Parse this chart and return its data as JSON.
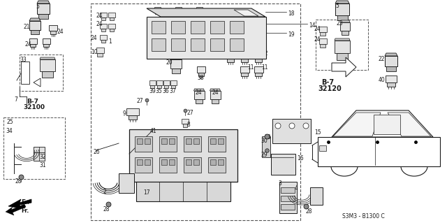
{
  "bg": "#ffffff",
  "lc": "#1a1a1a",
  "fs": 5.5,
  "watermark": "S3M3 - B1300 C",
  "b7_32100": "B-7\n32100",
  "b7_32120": "B-7\n32120",
  "fr_label": "Fr."
}
